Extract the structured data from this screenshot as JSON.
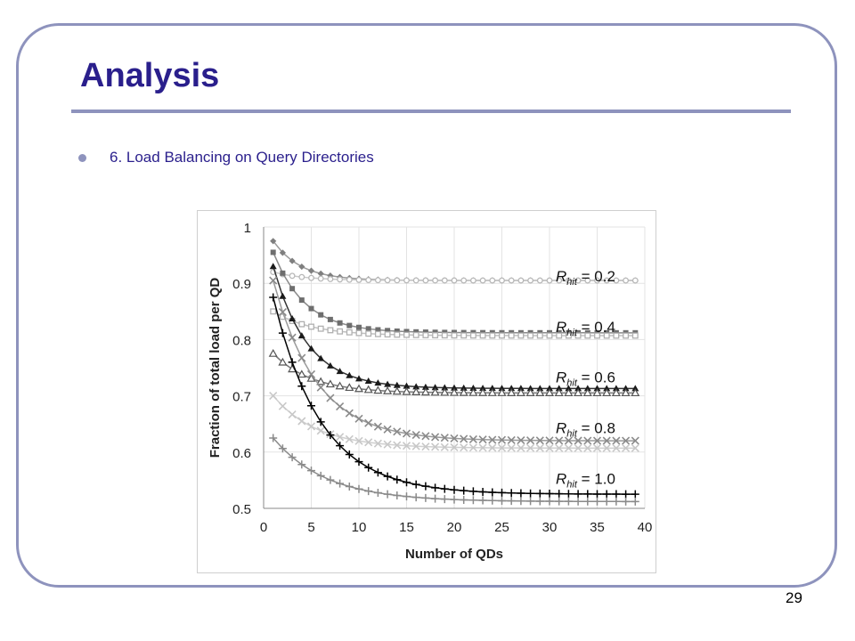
{
  "slide": {
    "title": "Analysis",
    "bullet": "6. Load Balancing on Query Directories",
    "page_number": "29"
  },
  "colors": {
    "title": "#2a1f8c",
    "frame": "#8e93bd",
    "bullet_text": "#2a1f8c"
  },
  "chart_data": {
    "type": "line",
    "title": "",
    "xlabel": "Number of QDs",
    "ylabel": "Fraction of total load per QD",
    "xlim": [
      0,
      40
    ],
    "ylim": [
      0.5,
      1
    ],
    "xticks": [
      "0",
      "5",
      "10",
      "15",
      "20",
      "25",
      "30",
      "35",
      "40"
    ],
    "yticks": [
      "0.5",
      "0.6",
      "0.7",
      "0.8",
      "0.9",
      "1"
    ],
    "grid": true,
    "x": [
      1,
      2,
      3,
      4,
      5,
      6,
      7,
      8,
      9,
      10,
      11,
      12,
      13,
      14,
      15,
      16,
      17,
      18,
      19,
      20,
      21,
      22,
      23,
      24,
      25,
      26,
      27,
      28,
      29,
      30,
      31,
      32,
      33,
      34,
      35,
      36,
      37,
      38,
      39
    ],
    "annotations": [
      {
        "prefix": "R",
        "sub": "hit",
        "suffix": " = 0.2",
        "y": 0.913
      },
      {
        "prefix": "R",
        "sub": "hit",
        "suffix": " = 0.4",
        "y": 0.823
      },
      {
        "prefix": "R",
        "sub": "hit",
        "suffix": " = 0.6",
        "y": 0.733
      },
      {
        "prefix": "R",
        "sub": "hit",
        "suffix": " = 0.8",
        "y": 0.643
      },
      {
        "prefix": "R",
        "sub": "hit",
        "suffix": " = 1.0",
        "y": 0.553
      }
    ],
    "series": [
      {
        "group": "0.2",
        "marker": "diamond",
        "color": "#7f7f7f",
        "line": "#9a9a9a",
        "start": 0.975,
        "end": 0.905,
        "k": 0.35
      },
      {
        "group": "0.2",
        "marker": "circle-open",
        "color": "#b8b8b8",
        "line": "#c8c8c8",
        "start": 0.92,
        "end": 0.905,
        "k": 0.3
      },
      {
        "group": "0.4",
        "marker": "square",
        "color": "#6e6e6e",
        "line": "#8a8a8a",
        "start": 0.955,
        "end": 0.812,
        "k": 0.3
      },
      {
        "group": "0.4",
        "marker": "square-open",
        "color": "#b0b0b0",
        "line": "#c0c0c0",
        "start": 0.85,
        "end": 0.807,
        "k": 0.25
      },
      {
        "group": "0.6",
        "marker": "triangle",
        "color": "#1a1a1a",
        "line": "#333333",
        "start": 0.93,
        "end": 0.713,
        "k": 0.28
      },
      {
        "group": "0.6",
        "marker": "triangle-open",
        "color": "#555555",
        "line": "#777777",
        "start": 0.775,
        "end": 0.705,
        "k": 0.25
      },
      {
        "group": "0.8",
        "marker": "x",
        "color": "#8a8a8a",
        "line": "#9a9a9a",
        "start": 0.905,
        "end": 0.62,
        "k": 0.22
      },
      {
        "group": "0.8",
        "marker": "x",
        "color": "#c8c8c8",
        "line": "#d0d0d0",
        "start": 0.7,
        "end": 0.607,
        "k": 0.22
      },
      {
        "group": "1.0",
        "marker": "plus",
        "color": "#000000",
        "line": "#000000",
        "start": 0.875,
        "end": 0.525,
        "k": 0.2
      },
      {
        "group": "1.0",
        "marker": "plus",
        "color": "#8a8a8a",
        "line": "#8a8a8a",
        "start": 0.625,
        "end": 0.512,
        "k": 0.18
      }
    ]
  }
}
